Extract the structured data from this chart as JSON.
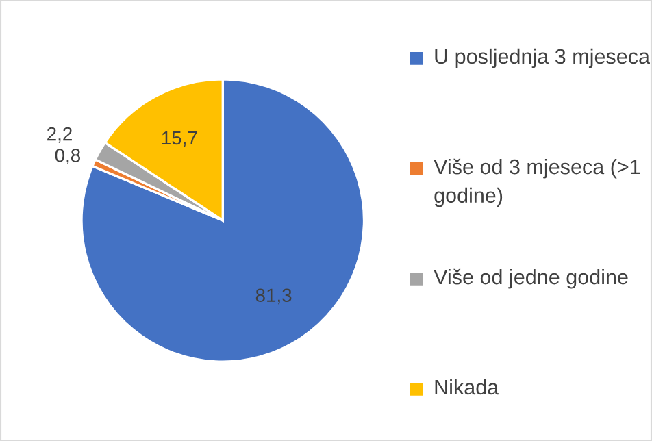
{
  "chart_data": {
    "type": "pie",
    "categories": [
      "U posljednja 3 mjeseca",
      "Više od 3 mjeseca (>1 godine)",
      "Više od jedne godine",
      "Nikada"
    ],
    "values": [
      81.3,
      0.8,
      2.2,
      15.7
    ],
    "value_labels": [
      "81,3",
      "0,8",
      "2,2",
      "15,7"
    ],
    "colors": [
      "#4472c4",
      "#ed7d31",
      "#a5a5a5",
      "#ffc000"
    ],
    "legend": "right"
  }
}
